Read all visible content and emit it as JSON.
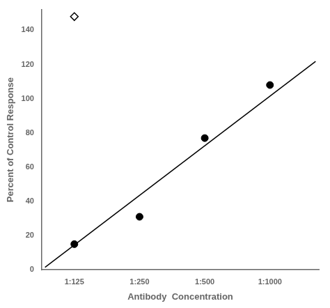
{
  "chart_data": {
    "type": "scatter",
    "xlabel": "Antibody  Concentration",
    "ylabel": "Percent of Control Response",
    "xlim": [
      0.5,
      4.75
    ],
    "ylim": [
      0,
      152
    ],
    "xticks": [
      {
        "value": 1,
        "label": "1:125"
      },
      {
        "value": 2,
        "label": "1:250"
      },
      {
        "value": 3,
        "label": "1:500"
      },
      {
        "value": 4,
        "label": "1:1000"
      }
    ],
    "yticks": [
      0,
      20,
      40,
      60,
      80,
      100,
      120,
      140
    ],
    "grid": false,
    "series": [
      {
        "type": "line",
        "color": "#000000",
        "x": [
          0.55,
          4.7
        ],
        "values": [
          1.45,
          121.8
        ]
      },
      {
        "type": "scatter",
        "marker": "circle",
        "color": "#000000",
        "x": [
          1,
          2,
          3,
          4
        ],
        "values": [
          15,
          31,
          77,
          108
        ]
      },
      {
        "type": "scatter",
        "marker": "open_diamond",
        "color": "#000000",
        "x": [
          1
        ],
        "values": [
          148
        ]
      }
    ]
  }
}
